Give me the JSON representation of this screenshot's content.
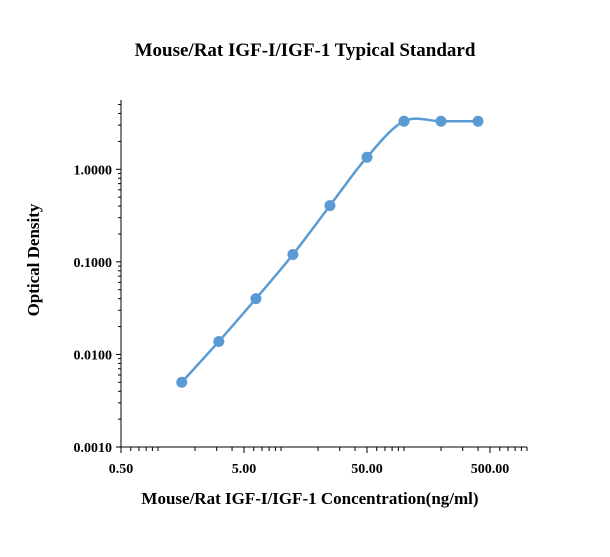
{
  "chart_data": {
    "type": "line",
    "title": "Mouse/Rat IGF-I/IGF-1 Typical Standard",
    "xlabel": "Mouse/Rat IGF-I/IGF-1 Concentration(ng/ml)",
    "ylabel": "Optical Density",
    "x_scale": "log",
    "y_scale": "log",
    "xlim": [
      0.5,
      1000
    ],
    "ylim": [
      0.001,
      5.6
    ],
    "x_ticks": [
      0.5,
      5,
      50,
      500
    ],
    "x_tick_labels": [
      "0.50",
      "5.00",
      "50.00",
      "500.00"
    ],
    "y_ticks": [
      0.001,
      0.01,
      0.1,
      1
    ],
    "y_tick_labels": [
      "0.0010",
      "0.0100",
      "0.1000",
      "1.0000"
    ],
    "grid": false,
    "series": [
      {
        "x": [
          1.56,
          3.12,
          6.25,
          12.5,
          25,
          50,
          100,
          200,
          400
        ],
        "y": [
          0.005,
          0.0138,
          0.04,
          0.12,
          0.405,
          1.35,
          3.3,
          3.3,
          3.3
        ]
      }
    ],
    "colors": {
      "line": "#5b9bd5",
      "marker": "#5b9bd5",
      "axis": "#000000"
    }
  }
}
